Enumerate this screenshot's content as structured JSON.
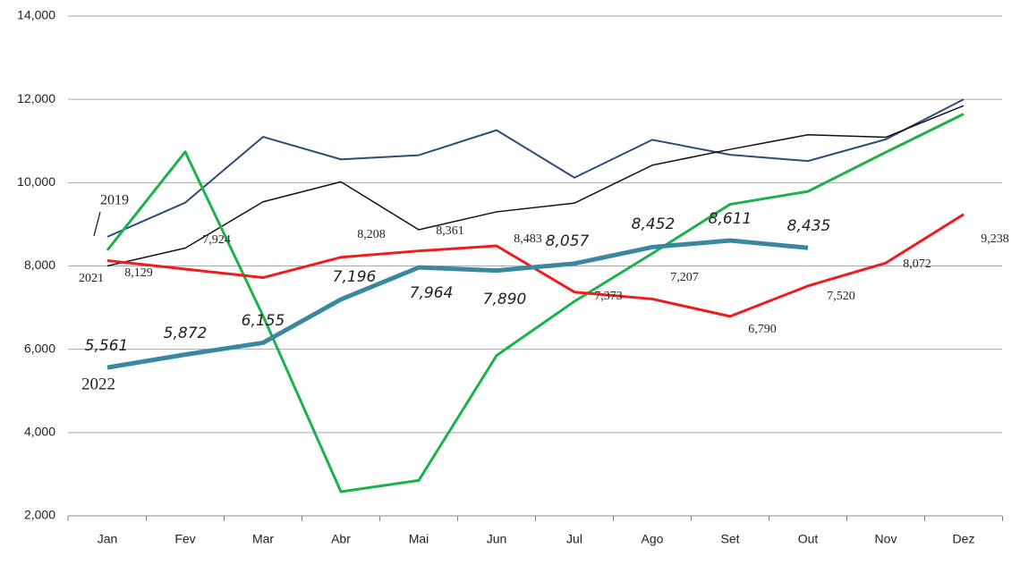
{
  "chart_data": {
    "type": "line",
    "categories": [
      "Jan",
      "Fev",
      "Mar",
      "Abr",
      "Mai",
      "Jun",
      "Jul",
      "Ago",
      "Set",
      "Out",
      "Nov",
      "Dez"
    ],
    "ylim": [
      2000,
      14000
    ],
    "yticks": [
      {
        "value": 2000,
        "label": "2,000"
      },
      {
        "value": 4000,
        "label": "4,000"
      },
      {
        "value": 6000,
        "label": "6,000"
      },
      {
        "value": 8000,
        "label": "8,000"
      },
      {
        "value": 10000,
        "label": "10,000"
      },
      {
        "value": 12000,
        "label": "12,000"
      },
      {
        "value": 14000,
        "label": "14,000"
      }
    ],
    "grid": true,
    "series": [
      {
        "name": "2019",
        "color": "#2f4b7c",
        "values": [
          8700,
          9520,
          11100,
          10560,
          10660,
          11260,
          10120,
          11030,
          10670,
          10520,
          11040,
          12000
        ]
      },
      {
        "color": "#111111",
        "values": [
          8000,
          8430,
          9540,
          10020,
          8870,
          9300,
          9510,
          10420,
          10800,
          11150,
          11090,
          11850
        ]
      },
      {
        "color": "#1db14b",
        "values": [
          8380,
          10740,
          6800,
          2580,
          2850,
          5850,
          7150,
          8300,
          9480,
          9790,
          10730,
          11650
        ]
      },
      {
        "name": "2021",
        "color": "#ee1c1c",
        "values": [
          8129,
          7924,
          7720,
          8208,
          8361,
          8483,
          7373,
          7207,
          6790,
          7520,
          8072,
          9238
        ],
        "value_labels": [
          "8,129",
          "7,924",
          null,
          "8,208",
          "8,361",
          "8,483",
          "7,373",
          "7,207",
          "6,790",
          "7,520",
          "8,072",
          "9,238"
        ]
      },
      {
        "name": "2022",
        "color": "#3a88a0",
        "values": [
          5561,
          5872,
          6155,
          7196,
          7964,
          7890,
          8057,
          8452,
          8611,
          8435,
          null,
          null
        ],
        "value_labels": [
          "5,561",
          "5,872",
          "6,155",
          "7,196",
          "7,964",
          "7,890",
          "8,057",
          "8,452",
          "8,611",
          "8,435",
          null,
          null
        ]
      }
    ]
  }
}
